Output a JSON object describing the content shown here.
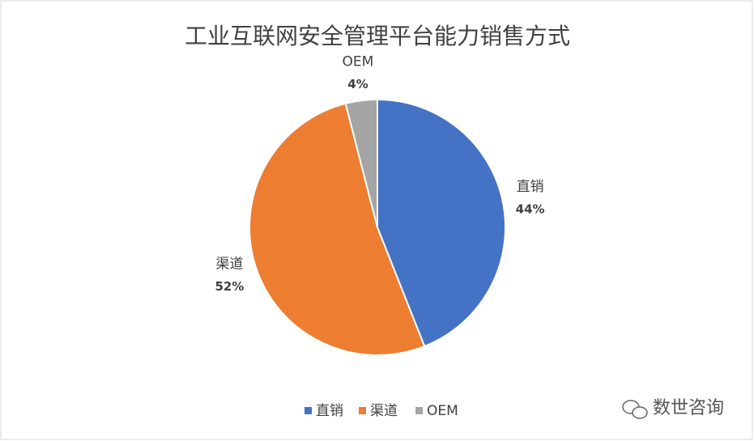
{
  "chart_data": {
    "type": "pie",
    "title": "工业互联网安全管理平台能力销售方式",
    "categories": [
      "直销",
      "渠道",
      "OEM"
    ],
    "values": [
      44,
      52,
      4
    ],
    "value_labels": [
      "44%",
      "52%",
      "4%"
    ],
    "colors": [
      "#4472c4",
      "#ed7d31",
      "#a5a5a5"
    ],
    "legend": "bottom"
  },
  "watermark": "数世咨询"
}
